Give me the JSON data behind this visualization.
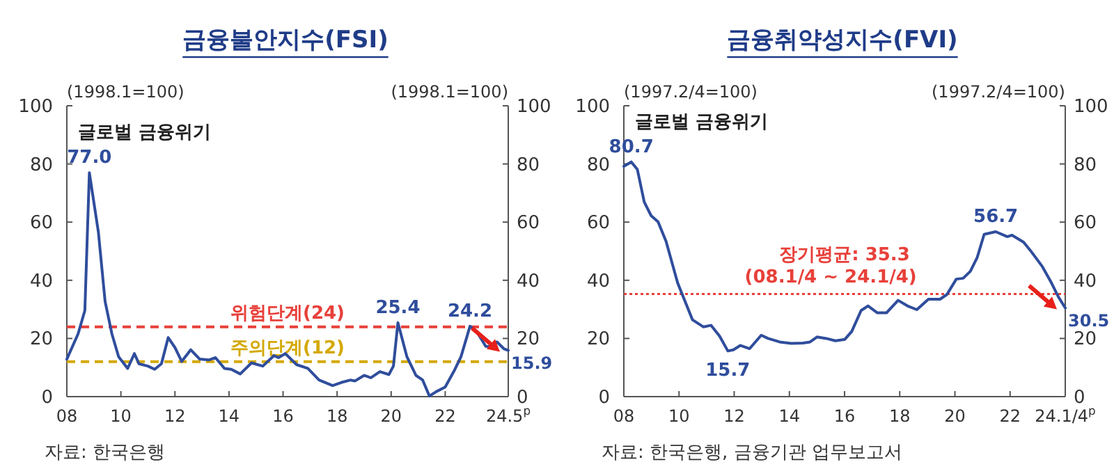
{
  "chart_data": [
    {
      "type": "line",
      "title": "금융불안지수(FSI)",
      "ylabel": "(1998.1=100)",
      "y2label": "(1998.1=100)",
      "x": [
        "2008-01",
        "2008-06",
        "2008-09",
        "2008-11",
        "2009-03",
        "2009-06",
        "2009-09",
        "2009-12",
        "2010-04",
        "2010-07",
        "2010-09",
        "2011-01",
        "2011-04",
        "2011-07",
        "2011-10",
        "2012-01",
        "2012-04",
        "2012-08",
        "2012-12",
        "2013-04",
        "2013-07",
        "2013-11",
        "2014-02",
        "2014-06",
        "2014-11",
        "2015-04",
        "2015-09",
        "2015-11",
        "2016-02",
        "2016-07",
        "2016-12",
        "2017-05",
        "2017-11",
        "2018-03",
        "2018-07",
        "2018-09",
        "2019-01",
        "2019-04",
        "2019-08",
        "2019-12",
        "2020-02",
        "2020-04",
        "2020-08",
        "2020-12",
        "2021-03",
        "2021-06",
        "2021-09",
        "2022-01",
        "2022-05",
        "2022-08",
        "2022-12",
        "2023-03",
        "2023-07",
        "2023-10",
        "2023-12",
        "2024-03",
        "2024-05"
      ],
      "series": [
        {
          "color": "#2f4d9c",
          "values": [
            12.9,
            21.6,
            29.6,
            77.0,
            56.6,
            32.7,
            21.6,
            13.7,
            9.7,
            14.8,
            11.3,
            10.5,
            9.4,
            11.3,
            20.3,
            16.9,
            12.1,
            16.1,
            12.9,
            12.6,
            13.4,
            9.7,
            9.4,
            7.8,
            11.6,
            10.5,
            14.1,
            13.4,
            14.8,
            11.0,
            9.7,
            5.7,
            3.8,
            4.9,
            5.7,
            5.4,
            7.3,
            6.5,
            8.6,
            7.6,
            10.5,
            25.4,
            13.7,
            7.3,
            5.7,
            0.2,
            1.7,
            3.3,
            8.9,
            13.7,
            24.2,
            22.4,
            17.3,
            17.2,
            18.8,
            16.5,
            15.9
          ]
        }
      ],
      "xlim": [
        "2008-01",
        "2024-05"
      ],
      "xticks": [
        {
          "value": "2008-01",
          "label": "08"
        },
        {
          "value": "2010-01",
          "label": "10"
        },
        {
          "value": "2012-01",
          "label": "12"
        },
        {
          "value": "2014-01",
          "label": "14"
        },
        {
          "value": "2016-01",
          "label": "16"
        },
        {
          "value": "2018-01",
          "label": "18"
        },
        {
          "value": "2020-01",
          "label": "20"
        },
        {
          "value": "2022-01",
          "label": "22"
        },
        {
          "value": "2024-05",
          "label": "24.5$^{p}$"
        }
      ],
      "ylim": [
        0,
        100
      ],
      "yticks": [
        0,
        20,
        40,
        60,
        80,
        100
      ],
      "y2lim": [
        0,
        100
      ],
      "y2ticks": [
        0,
        20,
        40,
        60,
        80,
        100
      ],
      "ref_lines": [
        {
          "axis": "y",
          "value": 24,
          "label": "위험단계(24)",
          "color": "#e8403a",
          "line_style": "dashed"
        },
        {
          "axis": "y",
          "value": 12,
          "label": "주의단계(12)",
          "color": "#d4a800",
          "line_style": "dashed"
        }
      ],
      "annotations": [
        "글로벌 금융위기",
        {
          "text": "77.0",
          "x": "2008-11",
          "y": 77.0
        },
        {
          "text": "25.4",
          "x": "2020-04",
          "y": 25.4
        },
        {
          "text": "24.2",
          "x": "2022-12",
          "y": 24.2
        },
        {
          "text": "15.9",
          "x": "2024-05",
          "y": 15.9
        },
        "자료: 한국은행"
      ]
    },
    {
      "type": "line",
      "title": "금융취약성지수(FVI)",
      "ylabel": "(1997.2/4=100)",
      "y2label": "(1997.2/4=100)",
      "x": [
        2008.0,
        2008.27,
        2008.49,
        2008.74,
        2008.99,
        2009.24,
        2009.53,
        2009.95,
        2010.49,
        2010.88,
        2011.16,
        2011.47,
        2011.77,
        2011.97,
        2012.22,
        2012.56,
        2012.98,
        2013.23,
        2013.65,
        2014.07,
        2014.49,
        2014.75,
        2015.0,
        2015.34,
        2015.67,
        2016.01,
        2016.26,
        2016.6,
        2016.85,
        2017.19,
        2017.52,
        2017.94,
        2018.28,
        2018.62,
        2019.04,
        2019.46,
        2019.71,
        2020.05,
        2020.3,
        2020.56,
        2020.81,
        2021.06,
        2021.48,
        2021.9,
        2022.07,
        2022.49,
        2022.74,
        2023.17,
        2023.5,
        2023.75,
        2024.0
      ],
      "series": [
        {
          "color": "#2f4d9c",
          "values": [
            79.2,
            80.7,
            78.1,
            66.9,
            62.2,
            60.1,
            53.4,
            39.1,
            26.4,
            24.0,
            24.5,
            20.8,
            15.7,
            16.1,
            17.6,
            16.5,
            21.1,
            20.0,
            18.8,
            18.3,
            18.4,
            18.8,
            20.5,
            20.0,
            19.2,
            19.7,
            22.4,
            29.6,
            31.2,
            28.8,
            28.8,
            33.1,
            31.2,
            29.9,
            33.5,
            33.5,
            35.1,
            40.4,
            40.7,
            43.1,
            47.9,
            55.8,
            56.7,
            55.0,
            55.5,
            53.1,
            50.2,
            44.7,
            39.1,
            34.3,
            30.5
          ]
        }
      ],
      "xlim": [
        2008,
        2024
      ],
      "xticks": [
        {
          "value": 2008,
          "label": "08"
        },
        {
          "value": 2010,
          "label": "10"
        },
        {
          "value": 2012,
          "label": "12"
        },
        {
          "value": 2014,
          "label": "14"
        },
        {
          "value": 2016,
          "label": "16"
        },
        {
          "value": 2018,
          "label": "18"
        },
        {
          "value": 2020,
          "label": "20"
        },
        {
          "value": 2022,
          "label": "22"
        },
        {
          "value": 2024,
          "label": "24.1/4$^{p}$"
        }
      ],
      "ylim": [
        0,
        100
      ],
      "yticks": [
        0,
        20,
        40,
        60,
        80,
        100
      ],
      "y2lim": [
        0,
        100
      ],
      "y2ticks": [
        0,
        20,
        40,
        60,
        80,
        100
      ],
      "ref_lines": [
        {
          "axis": "y",
          "value": 35.3,
          "label": "장기평균: 35.3",
          "color": "#e8403a",
          "line_style": "dotted"
        }
      ],
      "annotations": [
        "글로벌 금융위기",
        {
          "text": "80.7",
          "x": 2008.27,
          "y": 80.7
        },
        {
          "text": "15.7",
          "x": 2011.77,
          "y": 15.7
        },
        {
          "text": "56.7",
          "x": 2021.48,
          "y": 56.7
        },
        {
          "text": "30.5",
          "x": 2024.0,
          "y": 30.5
        },
        {
          "text": "(08.1/4 ~ 24.1/4)",
          "x": 2015.5,
          "y": 35.3
        },
        "자료: 한국은행, 금융기관 업무보고서"
      ]
    }
  ]
}
